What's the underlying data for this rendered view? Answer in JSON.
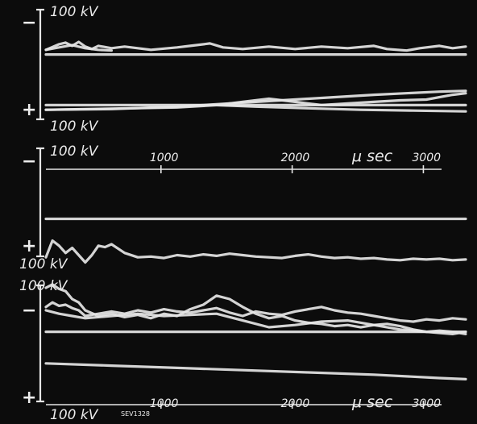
{
  "figure": {
    "background": "#0c0c0c",
    "trace_color": "#e6e6e6",
    "code_label": "SEV1328"
  },
  "chart_data": [
    {
      "type": "line",
      "panel": "top",
      "scale_labels": {
        "top": "100 kV",
        "bottom": "100 kV"
      },
      "polarity": {
        "top": "−",
        "bottom": "+"
      },
      "x_axis_printed": false,
      "xlim": [
        0,
        3200
      ],
      "ylim": [
        0,
        100
      ],
      "series": [
        {
          "x": [
            0,
            100,
            150,
            200,
            250,
            300,
            350,
            400,
            500,
            600,
            800,
            1000,
            1100,
            1250,
            1350,
            1500,
            1700,
            1900,
            2100,
            2300,
            2500,
            2600,
            2750,
            2850,
            3000,
            3100,
            3200
          ],
          "y": [
            88,
            95,
            97,
            93,
            98,
            92,
            89,
            93,
            90,
            92,
            88,
            91,
            93,
            96,
            91,
            89,
            92,
            89,
            92,
            90,
            93,
            89,
            87,
            90,
            93,
            90,
            92
          ]
        },
        {
          "x": [
            0,
            100,
            200,
            300,
            400,
            500
          ],
          "y": [
            88,
            91,
            94,
            90,
            88,
            87
          ]
        },
        {
          "x": [
            0,
            3200
          ],
          "y": [
            82,
            82
          ]
        },
        {
          "x": [
            0,
            500,
            1000,
            1500,
            2000,
            2500,
            3000,
            3200
          ],
          "y": [
            12,
            13,
            16,
            21,
            26,
            31,
            35,
            36
          ]
        },
        {
          "x": [
            0,
            1000,
            1300,
            1500,
            1700,
            1900,
            2100,
            2300,
            2500,
            2700,
            2900,
            3100,
            3200
          ],
          "y": [
            12,
            15,
            18,
            22,
            26,
            22,
            18,
            20,
            22,
            24,
            25,
            31,
            33
          ]
        },
        {
          "x": [
            0,
            3200
          ],
          "y": [
            18,
            18
          ]
        },
        {
          "x": [
            1300,
            1600,
            2000,
            2400,
            2800,
            3200
          ],
          "y": [
            18,
            16,
            14,
            12,
            11,
            10
          ]
        }
      ]
    },
    {
      "type": "line",
      "panel": "middle",
      "scale_labels": {
        "top": "100 kV",
        "bottom": "100 kV"
      },
      "polarity": {
        "top": "−",
        "bottom": "+"
      },
      "x_label": "μ sec",
      "x_ticks": [
        "1000",
        "2000",
        "3000"
      ],
      "x_tick_values": [
        1000,
        2000,
        3000
      ],
      "xlim": [
        0,
        3200
      ],
      "ylim": [
        0,
        100
      ],
      "series": [
        {
          "x": [
            0,
            3200
          ],
          "y": [
            65,
            65
          ]
        },
        {
          "x": [
            0,
            50,
            100,
            150,
            200,
            250,
            300,
            350,
            400,
            450,
            500,
            600,
            700,
            800,
            900,
            1000,
            1100,
            1200,
            1300,
            1400,
            1500,
            1600,
            1700,
            1800,
            1900,
            2000,
            2100,
            2200,
            2300,
            2400,
            2500,
            2600,
            2700,
            2800,
            2900,
            3000,
            3100,
            3200
          ],
          "y": [
            12,
            35,
            28,
            18,
            25,
            15,
            5,
            15,
            28,
            26,
            30,
            18,
            12,
            13,
            11,
            15,
            13,
            16,
            14,
            17,
            15,
            13,
            12,
            11,
            14,
            16,
            13,
            11,
            12,
            10,
            11,
            9,
            8,
            10,
            9,
            10,
            8,
            9
          ]
        }
      ]
    },
    {
      "type": "line",
      "panel": "bottom",
      "scale_labels": {
        "top": "100 kV",
        "bottom": "100 kV"
      },
      "polarity": {
        "top": "−",
        "bottom": "+"
      },
      "x_label": "μ sec",
      "x_ticks": [
        "1000",
        "2000",
        "3000"
      ],
      "x_tick_values": [
        1000,
        2000,
        3000
      ],
      "xlim": [
        0,
        3200
      ],
      "ylim": [
        0,
        100
      ],
      "series": [
        {
          "x": [
            0,
            50,
            100,
            150,
            200,
            250,
            300,
            400,
            500,
            600,
            700,
            800,
            900,
            1000,
            1100,
            1200,
            1300,
            1400,
            1500,
            1600,
            1700,
            1800,
            1900,
            2000,
            2100,
            2200,
            2300,
            2400,
            2500,
            2600,
            2700,
            2800,
            2900,
            3000,
            3100,
            3200
          ],
          "y": [
            95,
            98,
            94,
            92,
            85,
            82,
            75,
            70,
            72,
            69,
            71,
            68,
            72,
            70,
            76,
            80,
            88,
            85,
            78,
            72,
            68,
            70,
            66,
            64,
            63,
            61,
            62,
            60,
            62,
            63,
            61,
            58,
            56,
            55,
            54,
            56
          ]
        },
        {
          "x": [
            0,
            50,
            100,
            150,
            200,
            250,
            300,
            400,
            500,
            600,
            700,
            800,
            900,
            1000,
            1100,
            1200,
            1300,
            1400,
            1500,
            1600,
            1700,
            1800,
            1900,
            2000,
            2100,
            2200,
            2300,
            2400,
            2500,
            2600,
            2700,
            2800,
            2900,
            3000,
            3100,
            3200
          ],
          "y": [
            78,
            82,
            79,
            80,
            77,
            75,
            70,
            72,
            74,
            72,
            75,
            73,
            76,
            74,
            73,
            75,
            77,
            73,
            70,
            74,
            72,
            71,
            74,
            76,
            78,
            75,
            73,
            72,
            70,
            68,
            66,
            65,
            67,
            66,
            68,
            67
          ]
        },
        {
          "x": [
            0,
            100,
            200,
            300,
            500,
            700,
            900,
            1100,
            1300,
            1500,
            1700,
            1900,
            2100,
            2300,
            2500,
            2700,
            2900,
            3000,
            3100,
            3200
          ],
          "y": [
            75,
            72,
            70,
            68,
            70,
            72,
            70,
            71,
            72,
            66,
            60,
            62,
            65,
            66,
            62,
            58,
            56,
            57,
            56,
            54
          ]
        },
        {
          "x": [
            0,
            3200
          ],
          "y": [
            56,
            56
          ]
        },
        {
          "x": [
            0,
            500,
            1000,
            1500,
            2000,
            2500,
            3000,
            3200
          ],
          "y": [
            28,
            26,
            24,
            22,
            20,
            18,
            15,
            14
          ]
        }
      ]
    }
  ]
}
